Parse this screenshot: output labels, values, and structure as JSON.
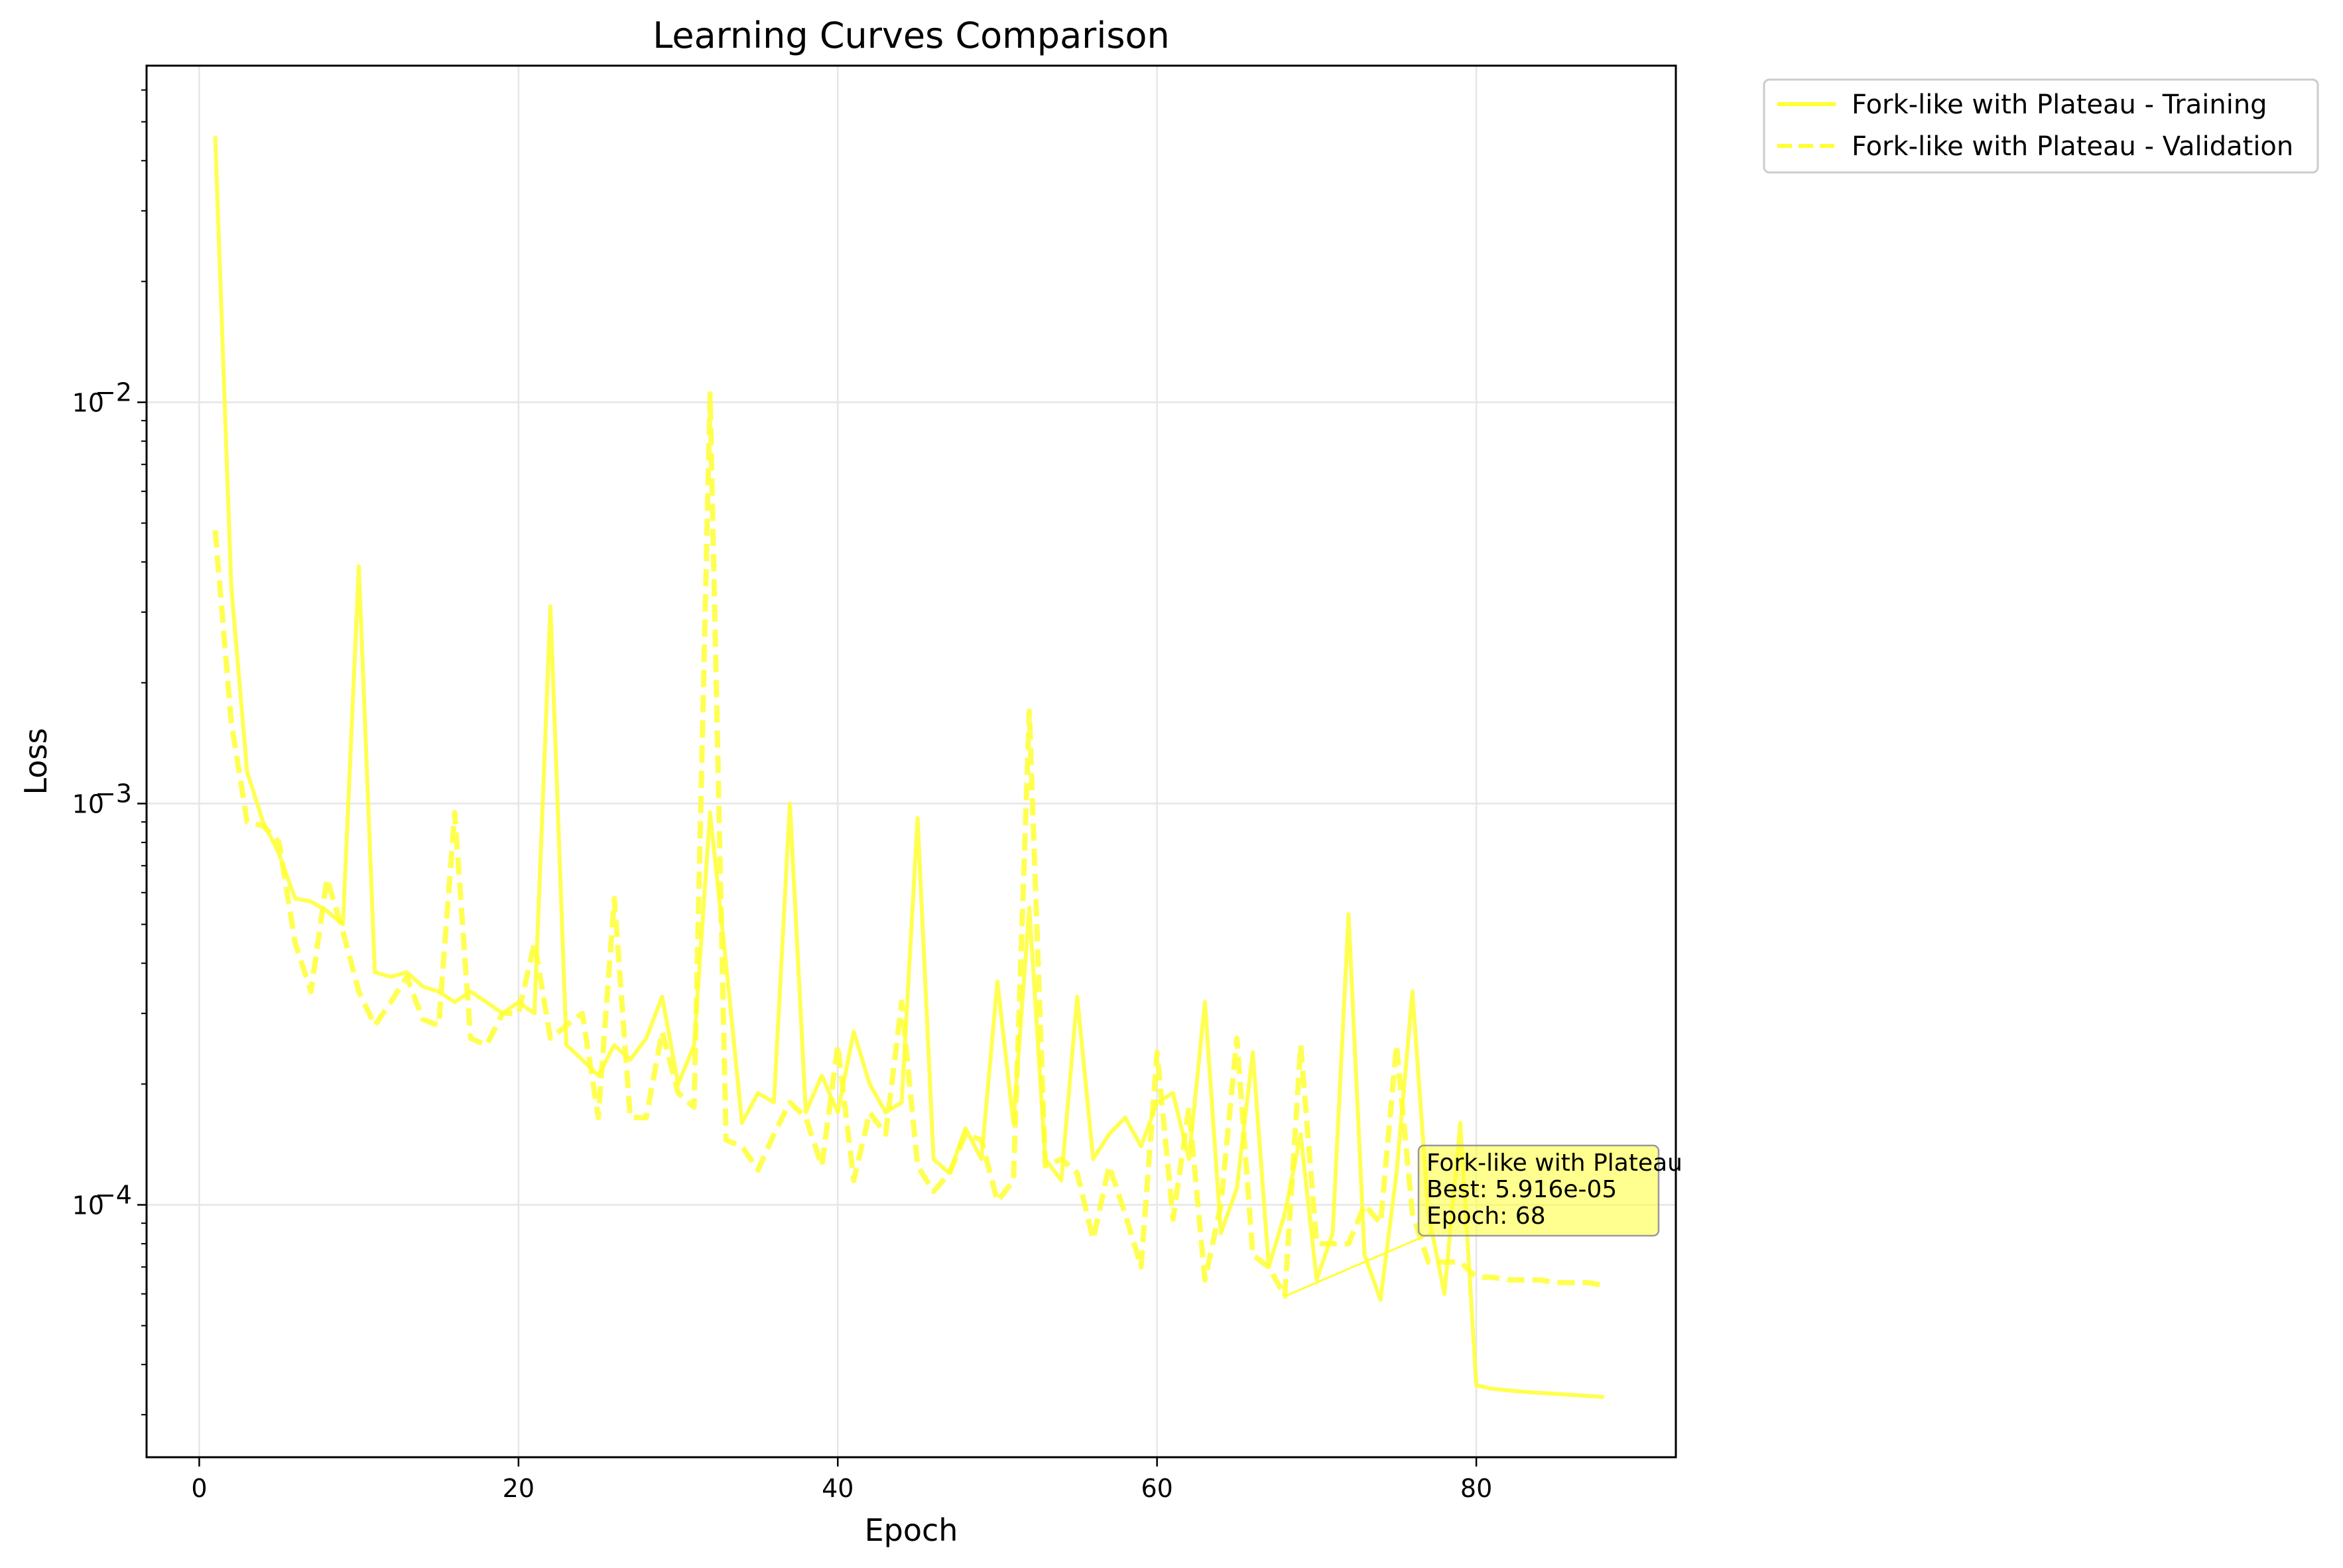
{
  "chart_data": {
    "type": "line",
    "title": "Learning Curves Comparison",
    "xlabel": "Epoch",
    "ylabel": "Loss",
    "xlim": [
      -3.3,
      92.5
    ],
    "ylim": [
      2.35e-05,
      0.069
    ],
    "yscale": "log",
    "grid": true,
    "legend_position": "outside-top-right",
    "x_ticks": [
      0,
      20,
      40,
      60,
      80
    ],
    "y_ticks": [
      {
        "value": 0.01,
        "base": "10",
        "exp": "−2"
      },
      {
        "value": 0.001,
        "base": "10",
        "exp": "−3"
      },
      {
        "value": 0.0001,
        "base": "10",
        "exp": "−4"
      }
    ],
    "line_color": "#ffff33",
    "series": [
      {
        "name": "Fork-like with Plateau - Training",
        "style": "solid",
        "x": [
          1,
          2,
          3,
          4,
          5,
          6,
          7,
          8,
          9,
          10,
          11,
          12,
          13,
          14,
          15,
          16,
          17,
          18,
          19,
          20,
          21,
          22,
          23,
          24,
          25,
          26,
          27,
          28,
          29,
          30,
          31,
          32,
          33,
          34,
          35,
          36,
          37,
          38,
          39,
          40,
          41,
          42,
          43,
          44,
          45,
          46,
          47,
          48,
          49,
          50,
          51,
          52,
          53,
          54,
          55,
          56,
          57,
          58,
          59,
          60,
          61,
          62,
          63,
          64,
          65,
          66,
          67,
          68,
          69,
          70,
          71,
          72,
          73,
          74,
          75,
          76,
          77,
          78,
          79,
          80,
          81,
          82,
          83,
          84,
          85,
          86,
          87,
          88
        ],
        "values": [
          0.046,
          0.0035,
          0.0012,
          0.0009,
          0.00075,
          0.00058,
          0.00057,
          0.00054,
          0.0005,
          0.0039,
          0.00038,
          0.00037,
          0.00038,
          0.00035,
          0.00034,
          0.00032,
          0.00034,
          0.00032,
          0.0003,
          0.00032,
          0.0003,
          0.0031,
          0.00025,
          0.00023,
          0.00021,
          0.00025,
          0.00023,
          0.00026,
          0.00033,
          0.0002,
          0.00025,
          0.00095,
          0.0004,
          0.00016,
          0.00019,
          0.00018,
          0.001,
          0.00017,
          0.00021,
          0.00017,
          0.00027,
          0.0002,
          0.00017,
          0.00018,
          0.00092,
          0.00013,
          0.00012,
          0.000155,
          0.00013,
          0.00036,
          0.00016,
          0.00055,
          0.00013,
          0.000115,
          0.00033,
          0.00013,
          0.00015,
          0.000165,
          0.00014,
          0.00018,
          0.00019,
          0.00013,
          0.00032,
          8.5e-05,
          0.00011,
          0.00024,
          7e-05,
          9.5e-05,
          0.00015,
          6.5e-05,
          8.5e-05,
          0.00053,
          7.5e-05,
          5.8e-05,
          0.00012,
          0.00034,
          9.5e-05,
          6e-05,
          0.00016,
          3.55e-05,
          3.48e-05,
          3.45e-05,
          3.42e-05,
          3.4e-05,
          3.38e-05,
          3.36e-05,
          3.34e-05,
          3.32e-05
        ]
      },
      {
        "name": "Fork-like with Plateau - Validation",
        "style": "dashed",
        "x": [
          1,
          2,
          3,
          4,
          5,
          6,
          7,
          8,
          9,
          10,
          11,
          12,
          13,
          14,
          15,
          16,
          17,
          18,
          19,
          20,
          21,
          22,
          23,
          24,
          25,
          26,
          27,
          28,
          29,
          30,
          31,
          32,
          33,
          34,
          35,
          36,
          37,
          38,
          39,
          40,
          41,
          42,
          43,
          44,
          45,
          46,
          47,
          48,
          49,
          50,
          51,
          52,
          53,
          54,
          55,
          56,
          57,
          58,
          59,
          60,
          61,
          62,
          63,
          64,
          65,
          66,
          67,
          68,
          69,
          70,
          71,
          72,
          73,
          74,
          75,
          76,
          77,
          78,
          79,
          80,
          81,
          82,
          83,
          84,
          85,
          86,
          87,
          88
        ],
        "values": [
          0.0048,
          0.0016,
          0.0009,
          0.00088,
          0.0008,
          0.00045,
          0.00034,
          0.00065,
          0.00048,
          0.00034,
          0.00028,
          0.00032,
          0.00037,
          0.00029,
          0.00028,
          0.00095,
          0.00026,
          0.00025,
          0.0003,
          0.0003,
          0.00045,
          0.00026,
          0.00028,
          0.0003,
          0.000165,
          0.00058,
          0.000165,
          0.000165,
          0.00027,
          0.00019,
          0.000175,
          0.0105,
          0.000145,
          0.00014,
          0.000122,
          0.00015,
          0.00018,
          0.000165,
          0.000125,
          0.00025,
          0.000115,
          0.00017,
          0.00015,
          0.00032,
          0.000125,
          0.000108,
          0.00012,
          0.00015,
          0.000145,
          0.000102,
          0.000115,
          0.0017,
          0.000125,
          0.00013,
          0.00012,
          8.2e-05,
          0.000125,
          9.5e-05,
          7e-05,
          0.00024,
          9.2e-05,
          0.000175,
          6.5e-05,
          0.0001,
          0.00026,
          7.5e-05,
          7e-05,
          5.92e-05,
          0.00025,
          8e-05,
          8e-05,
          8e-05,
          0.0001,
          9e-05,
          0.00025,
          9.5e-05,
          7.2e-05,
          7.2e-05,
          7.2e-05,
          6.6e-05,
          6.6e-05,
          6.5e-05,
          6.5e-05,
          6.5e-05,
          6.4e-05,
          6.4e-05,
          6.4e-05,
          6.3e-05
        ]
      }
    ],
    "annotation": {
      "lines": [
        "Fork-like with Plateau",
        "Best: 5.916e-05",
        "Epoch: 68"
      ],
      "point": {
        "x": 68,
        "y": 5.916e-05
      }
    }
  }
}
